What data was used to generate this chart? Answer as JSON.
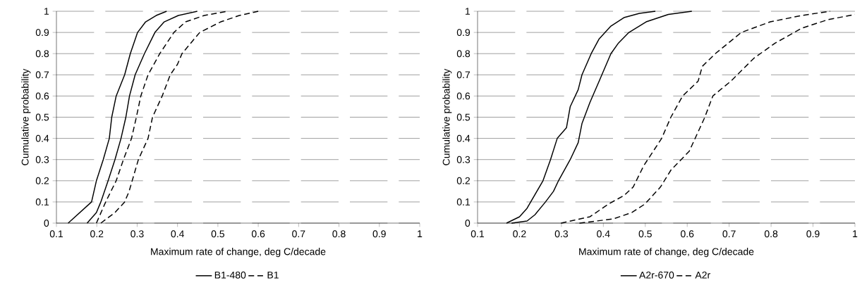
{
  "chart_data": [
    {
      "type": "line",
      "xlabel": "Maximum rate of change, deg C/decade",
      "ylabel": "Cumulative probability",
      "xlim": [
        0.1,
        1
      ],
      "ylim": [
        0,
        1
      ],
      "xticks": [
        0.1,
        0.2,
        0.3,
        0.4,
        0.5,
        0.6,
        0.7,
        0.8,
        0.9,
        1
      ],
      "yticks": [
        0,
        0.1,
        0.2,
        0.3,
        0.4,
        0.5,
        0.6,
        0.7,
        0.8,
        0.9,
        1
      ],
      "grid": "y",
      "legend": "bottom",
      "marker": "none",
      "series": [
        {
          "name": "B1-480",
          "color": "#000000",
          "line_style": "solid",
          "x": [
            0.129,
            0.187,
            0.199,
            0.216,
            0.231,
            0.237,
            0.248,
            0.269,
            0.283,
            0.301,
            0.321,
            0.347,
            0.373
          ],
          "values": [
            0,
            0.1,
            0.2,
            0.3,
            0.4,
            0.5,
            0.6,
            0.7,
            0.8,
            0.9,
            0.95,
            0.98,
            1
          ]
        },
        {
          "color": "#000000",
          "line_style": "solid",
          "x": [
            0.176,
            0.199,
            0.21,
            0.228,
            0.245,
            0.26,
            0.272,
            0.281,
            0.295,
            0.318,
            0.344,
            0.367,
            0.402,
            0.449
          ],
          "values": [
            0,
            0.05,
            0.1,
            0.2,
            0.3,
            0.4,
            0.5,
            0.6,
            0.7,
            0.8,
            0.9,
            0.95,
            0.98,
            1
          ]
        },
        {
          "name": "B1",
          "color": "#000000",
          "line_style": "dashed",
          "x": [
            0.199,
            0.222,
            0.248,
            0.266,
            0.286,
            0.298,
            0.309,
            0.327,
            0.356,
            0.391,
            0.42,
            0.466,
            0.524
          ],
          "values": [
            0,
            0.1,
            0.2,
            0.3,
            0.4,
            0.5,
            0.6,
            0.7,
            0.8,
            0.9,
            0.95,
            0.98,
            1
          ]
        },
        {
          "color": "#000000",
          "line_style": "dashed",
          "x": [
            0.21,
            0.245,
            0.269,
            0.28,
            0.303,
            0.327,
            0.338,
            0.362,
            0.382,
            0.4,
            0.411,
            0.455,
            0.507,
            0.553,
            0.6
          ],
          "values": [
            0,
            0.05,
            0.1,
            0.15,
            0.3,
            0.4,
            0.5,
            0.6,
            0.7,
            0.75,
            0.8,
            0.9,
            0.95,
            0.98,
            1
          ]
        }
      ]
    },
    {
      "type": "line",
      "xlabel": "Maximum rate of change, deg C/decade",
      "ylabel": "Cumulative probability",
      "xlim": [
        0.1,
        1
      ],
      "ylim": [
        0,
        1
      ],
      "xticks": [
        0.1,
        0.2,
        0.3,
        0.4,
        0.5,
        0.6,
        0.7,
        0.8,
        0.9,
        1
      ],
      "yticks": [
        0,
        0.1,
        0.2,
        0.3,
        0.4,
        0.5,
        0.6,
        0.7,
        0.8,
        0.9,
        1
      ],
      "grid": "y",
      "legend": "bottom",
      "marker": "none",
      "series": [
        {
          "name": "A2r-670",
          "color": "#000000",
          "line_style": "solid",
          "x": [
            0.169,
            0.2,
            0.218,
            0.256,
            0.274,
            0.29,
            0.312,
            0.321,
            0.34,
            0.349,
            0.371,
            0.39,
            0.418,
            0.449,
            0.486,
            0.524
          ],
          "values": [
            0,
            0.03,
            0.07,
            0.2,
            0.3,
            0.4,
            0.45,
            0.55,
            0.63,
            0.7,
            0.8,
            0.87,
            0.93,
            0.97,
            0.99,
            1
          ]
        },
        {
          "color": "#000000",
          "line_style": "solid",
          "x": [
            0.181,
            0.218,
            0.237,
            0.262,
            0.281,
            0.293,
            0.321,
            0.34,
            0.349,
            0.368,
            0.39,
            0.418,
            0.436,
            0.461,
            0.502,
            0.555,
            0.611
          ],
          "values": [
            0,
            0.01,
            0.04,
            0.1,
            0.15,
            0.2,
            0.3,
            0.38,
            0.47,
            0.57,
            0.67,
            0.8,
            0.85,
            0.9,
            0.95,
            0.985,
            1
          ]
        },
        {
          "name": "A2r",
          "color": "#000000",
          "line_style": "dashed",
          "x": [
            0.299,
            0.368,
            0.412,
            0.449,
            0.471,
            0.496,
            0.539,
            0.561,
            0.589,
            0.626,
            0.636,
            0.667,
            0.698,
            0.729,
            0.798,
            0.873,
            0.941
          ],
          "values": [
            0,
            0.03,
            0.09,
            0.13,
            0.17,
            0.27,
            0.4,
            0.5,
            0.6,
            0.67,
            0.74,
            0.8,
            0.85,
            0.9,
            0.95,
            0.98,
            1
          ]
        },
        {
          "color": "#000000",
          "line_style": "dashed",
          "x": [
            0.343,
            0.424,
            0.468,
            0.499,
            0.536,
            0.561,
            0.605,
            0.642,
            0.661,
            0.704,
            0.76,
            0.81,
            0.873,
            0.935,
            1
          ],
          "values": [
            0,
            0.02,
            0.05,
            0.09,
            0.17,
            0.25,
            0.34,
            0.5,
            0.6,
            0.67,
            0.78,
            0.85,
            0.92,
            0.96,
            0.985
          ]
        }
      ]
    }
  ]
}
